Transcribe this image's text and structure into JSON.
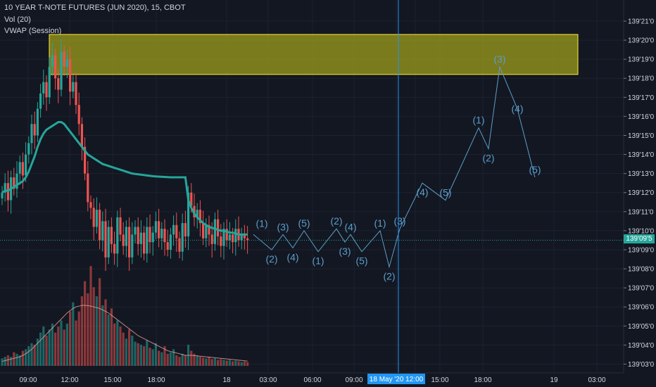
{
  "header": {
    "title": "10 YEAR T-NOTE FUTURES (JUN 2020), 15, CBOT",
    "indicator1": "Vol (20)",
    "indicator2": "VWAP (Session)"
  },
  "colors": {
    "background": "#131722",
    "up": "#26a69a",
    "down": "#ef5350",
    "vwap": "#26a69a",
    "wave": "#5b9fc9",
    "zone_fill": "#9e9e1c",
    "zone_border": "#ffeb3b",
    "grid": "#1e2230",
    "crosshair": "#2196f3"
  },
  "chart_data": {
    "type": "candlestick",
    "title": "10 YEAR T-NOTE FUTURES (JUN 2020), 15, CBOT",
    "symbol": "10 YEAR T-NOTE FUTURES (JUN 2020)",
    "interval": "15",
    "exchange": "CBOT",
    "price_unit": "32nds",
    "y_ticks": [
      "139'21'0",
      "139'20'0",
      "139'19'0",
      "139'18'0",
      "139'17'0",
      "139'16'0",
      "139'15'0",
      "139'14'0",
      "139'13'0",
      "139'12'0",
      "139'11'0",
      "139'10'0",
      "139'09'0",
      "139'08'0",
      "139'07'0",
      "139'06'0",
      "139'05'0",
      "139'04'0",
      "139'03'0"
    ],
    "y_tick_values": [
      21,
      20,
      19,
      18,
      17,
      16,
      15,
      14,
      13,
      12,
      11,
      10,
      9,
      8,
      7,
      6,
      5,
      4,
      3
    ],
    "x_ticks": [
      "09:00",
      "12:00",
      "15:00",
      "18:00",
      "18",
      "03:00",
      "06:00",
      "09:00",
      "18 May '20",
      "12:00",
      "15:00",
      "18:00",
      "19",
      "03:00"
    ],
    "current_price": "139'09'5",
    "current_price_value": 9.5,
    "crosshair_label": "18 May '20  12:00",
    "resistance_zone": {
      "low": 18.2,
      "high": 20.3
    },
    "price_series": {
      "name": "Price",
      "close": [
        12.0,
        12.5,
        11.6,
        12.8,
        12.2,
        13.0,
        13.6,
        12.9,
        14.0,
        14.6,
        15.6,
        15.0,
        16.4,
        17.2,
        17.8,
        17.0,
        18.6,
        19.2,
        18.0,
        17.4,
        19.4,
        18.6,
        19.0,
        17.3,
        17.8,
        16.6,
        15.6,
        14.4,
        13.0,
        11.5,
        11.2,
        10.2,
        11.1,
        9.5,
        10.5,
        8.6,
        10.2,
        9.3,
        8.8,
        10.7,
        9.8,
        9.2,
        10.2,
        8.6,
        9.8,
        10.2,
        9.3,
        9.9,
        8.8,
        10.2,
        9.4,
        9.9,
        10.5,
        9.6,
        10.1,
        9.4,
        9.0,
        9.8,
        10.3,
        9.6,
        8.9,
        10.4,
        9.7,
        12.0,
        11.3,
        10.7,
        11.1,
        10.4,
        9.6,
        10.3,
        9.8,
        9.3,
        10.6,
        9.7,
        9.2,
        10.1,
        9.5,
        9.8,
        9.4,
        10.1,
        9.5,
        9.8,
        9.6,
        9.5
      ]
    },
    "vwap_series": {
      "name": "VWAP (Session)",
      "values": [
        12.0,
        12.1,
        12.1,
        12.2,
        12.3,
        12.4,
        12.5,
        12.6,
        12.8,
        13.1,
        13.5,
        13.9,
        14.4,
        14.8,
        15.1,
        15.3,
        15.4,
        15.5,
        15.6,
        15.7,
        15.7,
        15.6,
        15.4,
        15.2,
        15.0,
        14.8,
        14.6,
        14.4,
        14.2,
        14.0,
        13.9,
        13.8,
        13.7,
        13.6,
        13.5,
        13.45,
        13.4,
        13.35,
        13.3,
        13.25,
        13.2,
        13.15,
        13.1,
        13.05,
        13.0,
        12.98,
        12.96,
        12.94,
        12.92,
        12.9,
        12.88,
        12.86,
        12.85,
        12.84,
        12.83,
        12.82,
        12.81,
        12.8,
        12.8,
        12.8,
        12.8,
        12.8,
        12.8,
        11.6,
        11.2,
        10.9,
        10.7,
        10.55,
        10.4,
        10.3,
        10.2,
        10.15,
        10.1,
        10.05,
        10.0,
        10.0,
        9.95,
        9.9,
        9.9,
        9.85,
        9.8,
        9.8,
        9.8,
        9.8
      ]
    },
    "volume_series": {
      "name": "Vol (20)",
      "values": [
        0.5,
        0.6,
        0.7,
        0.6,
        0.9,
        0.8,
        0.7,
        1.0,
        1.1,
        1.3,
        1.5,
        1.4,
        1.8,
        2.2,
        2.6,
        2.0,
        2.4,
        2.8,
        2.2,
        2.6,
        3.0,
        2.4,
        2.8,
        3.6,
        4.2,
        3.0,
        3.6,
        4.6,
        5.6,
        4.8,
        6.6,
        5.2,
        4.6,
        5.8,
        4.0,
        4.4,
        3.4,
        3.8,
        2.8,
        3.0,
        2.6,
        2.2,
        1.8,
        2.4,
        2.0,
        1.6,
        1.5,
        1.4,
        1.3,
        1.7,
        1.2,
        1.1,
        1.5,
        1.0,
        0.9,
        1.3,
        0.8,
        0.9,
        1.1,
        0.7,
        0.6,
        0.8,
        0.7,
        1.4,
        1.0,
        0.8,
        0.7,
        0.6,
        0.55,
        0.5,
        0.6,
        0.45,
        0.5,
        0.4,
        0.45,
        0.4,
        0.35,
        0.4,
        0.3,
        0.35,
        0.3,
        0.25,
        0.3,
        0.25
      ]
    },
    "volume_ma": {
      "name": "Vol MA (20)",
      "values": [
        0.3,
        0.35,
        0.4,
        0.45,
        0.5,
        0.55,
        0.6,
        0.7,
        0.8,
        0.95,
        1.1,
        1.3,
        1.5,
        1.7,
        1.9,
        2.1,
        2.3,
        2.5,
        2.7,
        2.9,
        3.1,
        3.3,
        3.5,
        3.65,
        3.8,
        3.9,
        3.95,
        4.0,
        4.0,
        3.98,
        3.95,
        3.9,
        3.85,
        3.8,
        3.7,
        3.6,
        3.5,
        3.35,
        3.2,
        3.05,
        2.9,
        2.75,
        2.6,
        2.45,
        2.3,
        2.15,
        2.0,
        1.9,
        1.8,
        1.7,
        1.6,
        1.5,
        1.4,
        1.3,
        1.2,
        1.1,
        1.0,
        0.95,
        0.9,
        0.85,
        0.8,
        0.75,
        0.7,
        0.7,
        0.7,
        0.68,
        0.66,
        0.64,
        0.62,
        0.6,
        0.58,
        0.56,
        0.54,
        0.52,
        0.5,
        0.48,
        0.46,
        0.44,
        0.42,
        0.4,
        0.38,
        0.36,
        0.34,
        0.32
      ]
    },
    "wave_projection": [
      {
        "x": 360,
        "price": 9.8
      },
      {
        "x": 386,
        "price": 9.0,
        "label": "(2)",
        "label_pos": "below"
      },
      {
        "x": 402,
        "price": 9.8,
        "label": "(3)",
        "label_pos": "above"
      },
      {
        "x": 416,
        "price": 9.1,
        "label": "(4)",
        "label_pos": "below"
      },
      {
        "x": 432,
        "price": 10.0,
        "label": "(5)",
        "label_pos": "above"
      },
      {
        "x": 452,
        "price": 8.9,
        "label": "(1)",
        "label_pos": "below"
      },
      {
        "x": 478,
        "price": 10.1,
        "label": "(2)",
        "label_pos": "above"
      },
      {
        "x": 490,
        "price": 9.4,
        "label": "(3)",
        "label_pos": "below"
      },
      {
        "x": 498,
        "price": 9.8,
        "label": "(4)",
        "label_pos": "above"
      },
      {
        "x": 514,
        "price": 8.9,
        "label": "(5)",
        "label_pos": "below"
      },
      {
        "x": 540,
        "price": 10.0,
        "label": "(1)",
        "label_pos": "above"
      },
      {
        "x": 553,
        "price": 8.1,
        "label": "(2)",
        "label_pos": "below"
      },
      {
        "x": 568,
        "price": 10.1,
        "label": "(3)",
        "label_pos": "above"
      },
      {
        "x": 600,
        "price": 12.5,
        "label": "(4)",
        "label_pos": "below"
      },
      {
        "x": 633,
        "price": 11.6,
        "label": "(5)",
        "label_pos": "above"
      },
      {
        "x": 680,
        "price": 15.4,
        "label": "(1)",
        "label_pos": "above"
      },
      {
        "x": 694,
        "price": 14.3,
        "label": "(2)",
        "label_pos": "below"
      },
      {
        "x": 710,
        "price": 18.6,
        "label": "(3)",
        "label_pos": "above"
      },
      {
        "x": 735,
        "price": 16.4,
        "label": "(4)",
        "label_pos": "right"
      },
      {
        "x": 760,
        "price": 12.8,
        "label": "(5)",
        "label_pos": "above"
      }
    ],
    "wave_first_label": {
      "text": "(1)",
      "x": 372,
      "price": 10.2
    },
    "grid": true,
    "legend": "top-left"
  }
}
